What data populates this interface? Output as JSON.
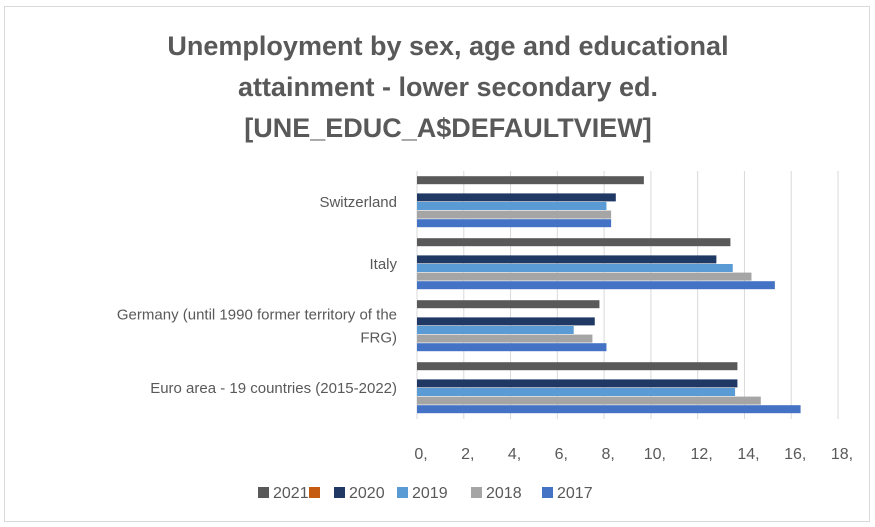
{
  "chart_data": {
    "type": "bar",
    "orientation": "horizontal",
    "title_lines": [
      "Unemployment by sex, age and educational",
      "attainment - lower secondary ed.",
      "[UNE_EDUC_A$DEFAULTVIEW]"
    ],
    "categories": [
      "Switzerland",
      "Italy",
      "Germany (until 1990 former territory of the FRG)",
      "Euro area - 19 countries  (2015-2022)"
    ],
    "category_label_lines": [
      [
        "Switzerland"
      ],
      [
        "Italy"
      ],
      [
        "Germany (until 1990 former territory of the",
        "FRG)"
      ],
      [
        "Euro area - 19 countries  (2015-2022)"
      ]
    ],
    "series": [
      {
        "name": "2021",
        "color": "#595959",
        "values": [
          9.7,
          13.4,
          7.8,
          13.7
        ]
      },
      {
        "name": "",
        "color": "#c55a11",
        "values": [
          null,
          null,
          null,
          null
        ]
      },
      {
        "name": "2020",
        "color": "#203864",
        "values": [
          8.5,
          12.8,
          7.6,
          13.7
        ]
      },
      {
        "name": "2019",
        "color": "#5b9bd5",
        "values": [
          8.1,
          13.5,
          6.7,
          13.6
        ]
      },
      {
        "name": "2018",
        "color": "#a5a5a5",
        "values": [
          8.3,
          14.3,
          7.5,
          14.7
        ]
      },
      {
        "name": "2017",
        "color": "#4472c4",
        "values": [
          8.3,
          15.3,
          8.1,
          16.4
        ]
      }
    ],
    "xlim": [
      0,
      18
    ],
    "x_ticks": [
      0,
      2,
      4,
      6,
      8,
      10,
      12,
      14,
      16,
      18
    ],
    "x_tick_labels": [
      "0,",
      "2,",
      "4,",
      "6,",
      "8,",
      "10,",
      "12,",
      "14,",
      "16,",
      "18,"
    ],
    "gridlines": true,
    "legend_position": "bottom",
    "legend_labels": [
      "2021",
      "",
      "2020",
      "2019",
      "2018",
      "2017"
    ]
  }
}
